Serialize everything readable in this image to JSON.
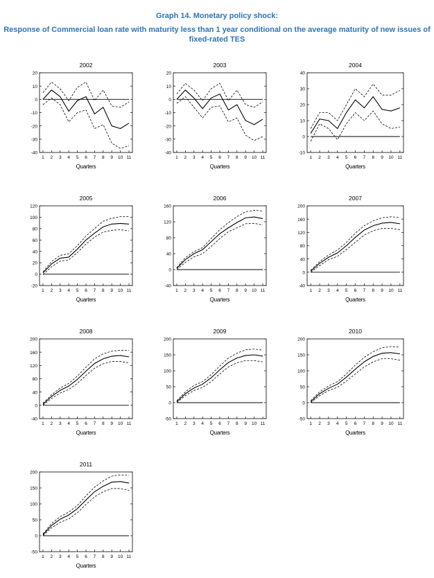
{
  "header": {
    "title": "Graph 14. Monetary policy shock:",
    "subtitle_line1": "Response of Commercial loan rate with maturity less than 1 year conditional on the average maturity of new issues of",
    "subtitle_line2": "fixed-rated TES",
    "title_color": "#2e74b5"
  },
  "chart_data": [
    {
      "type": "line",
      "title": "2002",
      "xlabel": "Quarters",
      "x": [
        1,
        2,
        3,
        4,
        5,
        6,
        7,
        8,
        9,
        10,
        11
      ],
      "ylim": [
        -40,
        20
      ],
      "yticks": [
        -40,
        -30,
        -20,
        -10,
        0,
        10,
        20
      ],
      "series": [
        {
          "style": "solid",
          "values": [
            0,
            7,
            2,
            -9,
            -1,
            2,
            -11,
            -6,
            -20,
            -22,
            -18
          ]
        },
        {
          "style": "dashed",
          "values": [
            5,
            13,
            8,
            -1,
            9,
            13,
            -1,
            7,
            -5,
            -6,
            -2
          ]
        },
        {
          "style": "dashed",
          "values": [
            -4,
            1,
            -4,
            -17,
            -10,
            -8,
            -22,
            -19,
            -33,
            -37,
            -35
          ]
        },
        {
          "style": "zero",
          "values": [
            0,
            0,
            0,
            0,
            0,
            0,
            0,
            0,
            0,
            0,
            0
          ]
        }
      ]
    },
    {
      "type": "line",
      "title": "2003",
      "xlabel": "Quarters",
      "x": [
        1,
        2,
        3,
        4,
        5,
        6,
        7,
        8,
        9,
        10,
        11
      ],
      "ylim": [
        -40,
        20
      ],
      "yticks": [
        -40,
        -30,
        -20,
        -10,
        0,
        10,
        20
      ],
      "series": [
        {
          "style": "solid",
          "values": [
            0,
            7,
            1,
            -7,
            1,
            4,
            -8,
            -4,
            -16,
            -19,
            -15
          ]
        },
        {
          "style": "dashed",
          "values": [
            4,
            12,
            7,
            -1,
            8,
            12,
            -1,
            7,
            -4,
            -6,
            -2
          ]
        },
        {
          "style": "dashed",
          "values": [
            -3,
            2,
            -6,
            -14,
            -6,
            -5,
            -17,
            -14,
            -27,
            -31,
            -28
          ]
        },
        {
          "style": "zero",
          "values": [
            0,
            0,
            0,
            0,
            0,
            0,
            0,
            0,
            0,
            0,
            0
          ]
        }
      ]
    },
    {
      "type": "line",
      "title": "2004",
      "xlabel": "Quarters",
      "x": [
        1,
        2,
        3,
        4,
        5,
        6,
        7,
        8,
        9,
        10,
        11
      ],
      "ylim": [
        -10,
        40
      ],
      "yticks": [
        -10,
        0,
        10,
        20,
        30,
        40
      ],
      "series": [
        {
          "style": "solid",
          "values": [
            2,
            11,
            10,
            5,
            15,
            23,
            18,
            25,
            17,
            16,
            18
          ]
        },
        {
          "style": "dashed",
          "values": [
            5,
            15,
            15,
            10,
            20,
            30,
            25,
            33,
            26,
            26,
            29
          ]
        },
        {
          "style": "dashed",
          "values": [
            -3,
            8,
            5,
            -2,
            8,
            15,
            10,
            16,
            8,
            5,
            6
          ]
        },
        {
          "style": "zero",
          "values": [
            0,
            0,
            0,
            0,
            0,
            0,
            0,
            0,
            0,
            0,
            0
          ]
        }
      ]
    },
    {
      "type": "line",
      "title": "2005",
      "xlabel": "Quarters",
      "x": [
        1,
        2,
        3,
        4,
        5,
        6,
        7,
        8,
        9,
        10,
        11
      ],
      "ylim": [
        -20,
        120
      ],
      "yticks": [
        -20,
        0,
        20,
        40,
        60,
        80,
        100,
        120
      ],
      "series": [
        {
          "style": "solid",
          "values": [
            2,
            18,
            28,
            30,
            44,
            60,
            72,
            83,
            88,
            89,
            88
          ]
        },
        {
          "style": "dashed",
          "values": [
            4,
            22,
            33,
            36,
            50,
            67,
            80,
            93,
            98,
            101,
            101
          ]
        },
        {
          "style": "dashed",
          "values": [
            -1,
            13,
            23,
            25,
            38,
            53,
            65,
            74,
            77,
            78,
            76
          ]
        },
        {
          "style": "zero",
          "values": [
            0,
            0,
            0,
            0,
            0,
            0,
            0,
            0,
            0,
            0,
            0
          ]
        }
      ]
    },
    {
      "type": "line",
      "title": "2006",
      "xlabel": "Quarters",
      "x": [
        1,
        2,
        3,
        4,
        5,
        6,
        7,
        8,
        9,
        10,
        11
      ],
      "ylim": [
        -40,
        160
      ],
      "yticks": [
        -40,
        0,
        40,
        80,
        120,
        160
      ],
      "series": [
        {
          "style": "solid",
          "values": [
            3,
            25,
            40,
            50,
            70,
            90,
            105,
            118,
            130,
            132,
            128
          ]
        },
        {
          "style": "dashed",
          "values": [
            5,
            30,
            45,
            55,
            78,
            100,
            118,
            133,
            145,
            149,
            147
          ]
        },
        {
          "style": "dashed",
          "values": [
            0,
            18,
            32,
            40,
            58,
            78,
            95,
            105,
            115,
            116,
            112
          ]
        },
        {
          "style": "zero",
          "values": [
            0,
            0,
            0,
            0,
            0,
            0,
            0,
            0,
            0,
            0,
            0
          ]
        }
      ]
    },
    {
      "type": "line",
      "title": "2007",
      "xlabel": "Quarters",
      "x": [
        1,
        2,
        3,
        4,
        5,
        6,
        7,
        8,
        9,
        10,
        11
      ],
      "ylim": [
        -40,
        200
      ],
      "yticks": [
        -40,
        0,
        40,
        80,
        120,
        160,
        200
      ],
      "series": [
        {
          "style": "solid",
          "values": [
            3,
            27,
            45,
            58,
            80,
            105,
            127,
            140,
            148,
            150,
            146
          ]
        },
        {
          "style": "dashed",
          "values": [
            6,
            32,
            52,
            67,
            90,
            118,
            140,
            155,
            164,
            167,
            165
          ]
        },
        {
          "style": "dashed",
          "values": [
            0,
            20,
            38,
            48,
            68,
            90,
            112,
            125,
            132,
            132,
            128
          ]
        },
        {
          "style": "zero",
          "values": [
            0,
            0,
            0,
            0,
            0,
            0,
            0,
            0,
            0,
            0,
            0
          ]
        }
      ]
    },
    {
      "type": "line",
      "title": "2008",
      "xlabel": "Quarters",
      "x": [
        1,
        2,
        3,
        4,
        5,
        6,
        7,
        8,
        9,
        10,
        11
      ],
      "ylim": [
        -40,
        200
      ],
      "yticks": [
        -40,
        0,
        40,
        80,
        120,
        160,
        200
      ],
      "series": [
        {
          "style": "solid",
          "values": [
            3,
            27,
            45,
            58,
            78,
            103,
            126,
            140,
            148,
            150,
            146
          ]
        },
        {
          "style": "dashed",
          "values": [
            6,
            32,
            52,
            66,
            88,
            115,
            140,
            155,
            163,
            166,
            165
          ]
        },
        {
          "style": "dashed",
          "values": [
            0,
            21,
            37,
            48,
            66,
            90,
            112,
            125,
            132,
            132,
            128
          ]
        },
        {
          "style": "zero",
          "values": [
            0,
            0,
            0,
            0,
            0,
            0,
            0,
            0,
            0,
            0,
            0
          ]
        }
      ]
    },
    {
      "type": "line",
      "title": "2009",
      "xlabel": "Quarters",
      "x": [
        1,
        2,
        3,
        4,
        5,
        6,
        7,
        8,
        9,
        10,
        11
      ],
      "ylim": [
        -50,
        200
      ],
      "yticks": [
        -50,
        0,
        50,
        100,
        150,
        200
      ],
      "series": [
        {
          "style": "solid",
          "values": [
            3,
            28,
            46,
            58,
            78,
            103,
            126,
            140,
            148,
            150,
            146
          ]
        },
        {
          "style": "dashed",
          "values": [
            6,
            34,
            54,
            66,
            88,
            115,
            140,
            155,
            166,
            168,
            165
          ]
        },
        {
          "style": "dashed",
          "values": [
            0,
            22,
            38,
            48,
            66,
            90,
            112,
            125,
            132,
            132,
            128
          ]
        },
        {
          "style": "zero",
          "values": [
            0,
            0,
            0,
            0,
            0,
            0,
            0,
            0,
            0,
            0,
            0
          ]
        }
      ]
    },
    {
      "type": "line",
      "title": "2010",
      "xlabel": "Quarters",
      "x": [
        1,
        2,
        3,
        4,
        5,
        6,
        7,
        8,
        9,
        10,
        11
      ],
      "ylim": [
        -50,
        200
      ],
      "yticks": [
        -50,
        0,
        50,
        100,
        150,
        200
      ],
      "series": [
        {
          "style": "solid",
          "values": [
            3,
            28,
            45,
            58,
            80,
            105,
            128,
            145,
            155,
            157,
            153
          ]
        },
        {
          "style": "dashed",
          "values": [
            6,
            34,
            52,
            66,
            90,
            118,
            142,
            160,
            172,
            176,
            174
          ]
        },
        {
          "style": "dashed",
          "values": [
            0,
            22,
            38,
            48,
            68,
            90,
            112,
            128,
            138,
            138,
            133
          ]
        },
        {
          "style": "zero",
          "values": [
            0,
            0,
            0,
            0,
            0,
            0,
            0,
            0,
            0,
            0,
            0
          ]
        }
      ]
    },
    {
      "type": "line",
      "title": "2011",
      "xlabel": "Quarters",
      "x": [
        1,
        2,
        3,
        4,
        5,
        6,
        7,
        8,
        9,
        10,
        11
      ],
      "ylim": [
        -50,
        200
      ],
      "yticks": [
        -50,
        0,
        50,
        100,
        150,
        200
      ],
      "series": [
        {
          "style": "solid",
          "values": [
            3,
            32,
            52,
            65,
            85,
            112,
            138,
            155,
            168,
            170,
            165
          ]
        },
        {
          "style": "dashed",
          "values": [
            6,
            38,
            60,
            74,
            95,
            125,
            152,
            172,
            187,
            191,
            189
          ]
        },
        {
          "style": "dashed",
          "values": [
            0,
            25,
            42,
            53,
            72,
            98,
            122,
            138,
            148,
            148,
            142
          ]
        },
        {
          "style": "zero",
          "values": [
            0,
            0,
            0,
            0,
            0,
            0,
            0,
            0,
            0,
            0,
            0
          ]
        }
      ]
    }
  ]
}
